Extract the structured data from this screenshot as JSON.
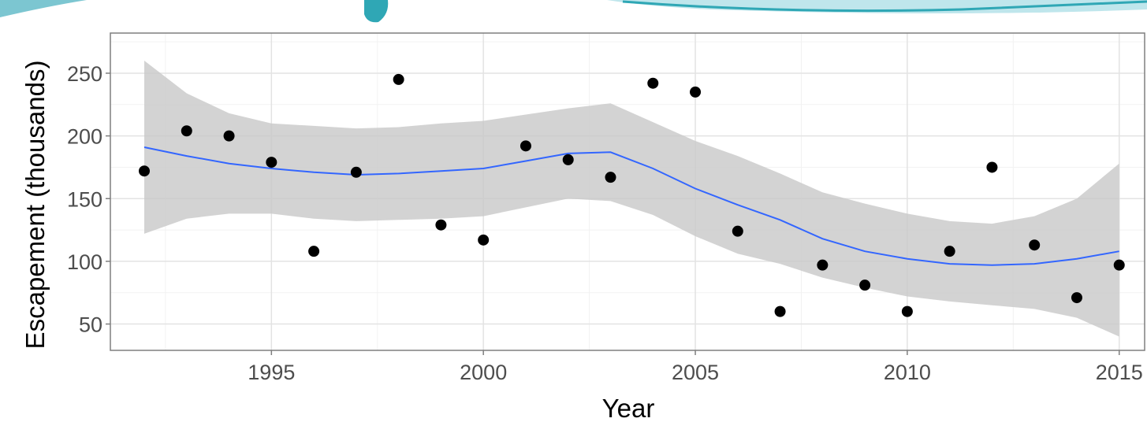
{
  "colors": {
    "background": "#ffffff",
    "panel_border": "#7f7f7f",
    "grid_major": "#e3e3e3",
    "grid_minor": "#f2f2f2",
    "points": "#000000",
    "smooth_line": "#3366ff",
    "ribbon": "#c8c8c8",
    "decor_teal": "#2fa7b5"
  },
  "chart_data": {
    "type": "scatter",
    "title": "",
    "xlabel": "Year",
    "ylabel": "Escapement (thousands)",
    "xlim": [
      1991.2,
      2015.6
    ],
    "ylim": [
      29,
      282
    ],
    "x_ticks": [
      1995,
      2000,
      2005,
      2010,
      2015
    ],
    "y_ticks": [
      50,
      100,
      150,
      200,
      250
    ],
    "grid": true,
    "legend": "none",
    "points": {
      "x": [
        1992,
        1993,
        1994,
        1995,
        1996,
        1997,
        1998,
        1999,
        2000,
        2001,
        2002,
        2003,
        2004,
        2005,
        2006,
        2007,
        2008,
        2009,
        2010,
        2011,
        2012,
        2013,
        2014,
        2015
      ],
      "y": [
        172,
        204,
        200,
        179,
        108,
        171,
        245,
        129,
        117,
        192,
        181,
        167,
        242,
        235,
        124,
        60,
        97,
        81,
        60,
        108,
        175,
        113,
        71,
        97
      ]
    },
    "smooth": {
      "x": [
        1992,
        1993,
        1994,
        1995,
        1996,
        1997,
        1998,
        1999,
        2000,
        2001,
        2002,
        2003,
        2004,
        2005,
        2006,
        2007,
        2008,
        2009,
        2010,
        2011,
        2012,
        2013,
        2014,
        2015
      ],
      "y": [
        191,
        184,
        178,
        174,
        171,
        169,
        170,
        172,
        174,
        180,
        186,
        187,
        174,
        158,
        145,
        133,
        118,
        108,
        102,
        98,
        97,
        98,
        102,
        108
      ],
      "lower": [
        122,
        134,
        138,
        138,
        134,
        132,
        133,
        134,
        136,
        143,
        150,
        148,
        137,
        120,
        106,
        98,
        87,
        79,
        72,
        68,
        65,
        62,
        55,
        40
      ],
      "upper": [
        260,
        234,
        218,
        210,
        208,
        206,
        207,
        210,
        212,
        217,
        222,
        226,
        211,
        196,
        184,
        170,
        155,
        146,
        138,
        132,
        130,
        136,
        150,
        178
      ]
    }
  }
}
